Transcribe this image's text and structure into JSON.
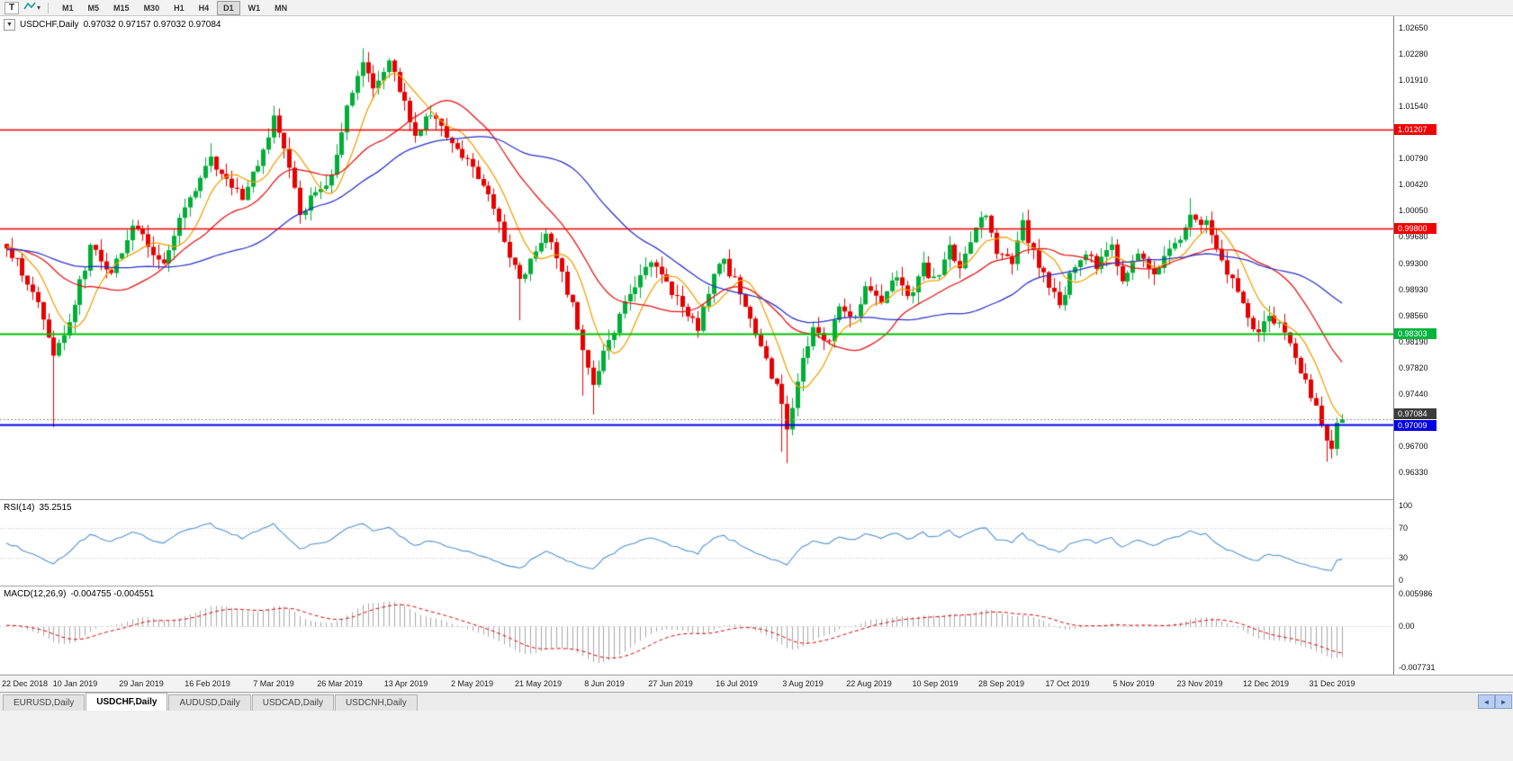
{
  "toolbar": {
    "text_tool_label": "T",
    "timeframes": [
      "M1",
      "M5",
      "M15",
      "M30",
      "H1",
      "H4",
      "D1",
      "W1",
      "MN"
    ],
    "active_timeframe": "D1"
  },
  "icons": {
    "collapse": "▼",
    "dropdown": "▾",
    "scroll_left": "◄",
    "scroll_right": "►"
  },
  "chart_header": {
    "symbol": "USDCHF,Daily",
    "ohlc": "0.97032 0.97157 0.97032 0.97084"
  },
  "price_scale": {
    "ticks": [
      "1.02650",
      "1.02280",
      "1.01910",
      "1.01540",
      "1.00790",
      "1.00420",
      "1.00050",
      "0.99680",
      "0.99300",
      "0.98930",
      "0.98560",
      "0.98190",
      "0.97820",
      "0.97440",
      "0.96700",
      "0.96330"
    ],
    "badges": [
      {
        "text": "1.01207",
        "bg": "#f00000",
        "price": 1.01207,
        "nudge": 0
      },
      {
        "text": "0.99800",
        "bg": "#f00000",
        "price": 0.998,
        "nudge": 0
      },
      {
        "text": "0.98303",
        "bg": "#00b43c",
        "price": 0.98303,
        "nudge": 0
      },
      {
        "text": "0.97084",
        "bg": "#3c3c3c",
        "price": 0.97084,
        "nudge": -6
      },
      {
        "text": "0.97009",
        "bg": "#0000e0",
        "price": 0.97009,
        "nudge": 1
      }
    ]
  },
  "rsi_panel": {
    "name": "RSI(14)",
    "value": "35.2515",
    "scale": [
      "100",
      "70",
      "30",
      "0"
    ]
  },
  "macd_panel": {
    "name": "MACD(12,26,9)",
    "values": "-0.004755 -0.004551",
    "scale": [
      "0.005986",
      "0.00",
      "-0.007731"
    ]
  },
  "tab_bar": {
    "tabs": [
      "EURUSD,Daily",
      "USDCHF,Daily",
      "AUDUSD,Daily",
      "USDCAD,Daily",
      "USDCNH,Daily"
    ],
    "active_index": 1
  },
  "chart_data": {
    "type": "candlestick",
    "symbol": "USDCHF",
    "timeframe": "Daily",
    "quote": {
      "open": 0.97032,
      "high": 0.97157,
      "low": 0.97032,
      "close": 0.97084
    },
    "x_labels": [
      "22 Dec 2018",
      "10 Jan 2019",
      "29 Jan 2019",
      "16 Feb 2019",
      "7 Mar 2019",
      "26 Mar 2019",
      "13 Apr 2019",
      "2 May 2019",
      "21 May 2019",
      "8 Jun 2019",
      "27 Jun 2019",
      "16 Jul 2019",
      "3 Aug 2019",
      "22 Aug 2019",
      "10 Sep 2019",
      "28 Sep 2019",
      "17 Oct 2019",
      "5 Nov 2019",
      "23 Nov 2019",
      "12 Dec 2019",
      "31 Dec 2019"
    ],
    "y_axis": {
      "top": 1.02816,
      "bottom": 0.95946,
      "tick_step": 0.0037
    },
    "hlines": [
      {
        "price": 1.01207,
        "color": "#f00000",
        "width": 1.5,
        "label": "1.01207"
      },
      {
        "price": 0.998,
        "color": "#f00000",
        "width": 1.5,
        "label": "0.99800"
      },
      {
        "price": 0.98303,
        "color": "#00c000",
        "width": 2,
        "label": "0.98303"
      },
      {
        "price": 0.97009,
        "color": "#0000e8",
        "width": 2,
        "label": "0.97009"
      }
    ],
    "style": {
      "up_color": "#00ae38",
      "down_color": "#e60000",
      "current_line_color": "#909090",
      "rsi_color": "#4f93d2",
      "macd_hist_color": "#a8a8a8",
      "macd_signal_color": "#e00000",
      "grid_dot_color": "#c0c0c0"
    },
    "moving_averages": [
      {
        "period": 8,
        "color": "#f0a000"
      },
      {
        "period": 21,
        "color": "#e81010"
      },
      {
        "period": 45,
        "color": "#2830cc"
      }
    ],
    "rsi": {
      "period": 14,
      "current": 35.2515,
      "levels": [
        70,
        30
      ],
      "range": [
        0,
        100
      ]
    },
    "macd": {
      "fast": 12,
      "slow": 26,
      "signal": 9,
      "current_main": -0.004755,
      "current_signal": -0.004551,
      "range": [
        0.005986,
        -0.007731
      ]
    },
    "candles": {
      "count": 256,
      "waypoints": [
        [
          0,
          0.995
        ],
        [
          2,
          0.9935
        ],
        [
          6,
          0.9872
        ],
        [
          9,
          0.9795
        ],
        [
          12,
          0.985
        ],
        [
          16,
          0.9952
        ],
        [
          20,
          0.9918
        ],
        [
          24,
          0.9985
        ],
        [
          27,
          0.9958
        ],
        [
          30,
          0.9925
        ],
        [
          34,
          1.001
        ],
        [
          39,
          1.0078
        ],
        [
          42,
          1.0045
        ],
        [
          45,
          1.0025
        ],
        [
          48,
          1.007
        ],
        [
          51,
          1.0135
        ],
        [
          54,
          1.0068
        ],
        [
          56,
          1.0
        ],
        [
          59,
          1.003
        ],
        [
          62,
          1.0052
        ],
        [
          65,
          1.015
        ],
        [
          68,
          1.0215
        ],
        [
          70,
          1.018
        ],
        [
          73,
          1.0215
        ],
        [
          76,
          1.016
        ],
        [
          78,
          1.011
        ],
        [
          81,
          1.0145
        ],
        [
          84,
          1.011
        ],
        [
          87,
          1.0085
        ],
        [
          90,
          1.0055
        ],
        [
          93,
          1.001
        ],
        [
          96,
          0.9945
        ],
        [
          98,
          0.9905
        ],
        [
          101,
          0.995
        ],
        [
          103,
          0.9975
        ],
        [
          105,
          0.9935
        ],
        [
          108,
          0.987
        ],
        [
          110,
          0.98
        ],
        [
          112,
          0.976
        ],
        [
          114,
          0.98
        ],
        [
          117,
          0.9855
        ],
        [
          120,
          0.99
        ],
        [
          123,
          0.9935
        ],
        [
          126,
          0.9905
        ],
        [
          129,
          0.9865
        ],
        [
          132,
          0.984
        ],
        [
          135,
          0.9915
        ],
        [
          137,
          0.993
        ],
        [
          140,
          0.989
        ],
        [
          143,
          0.983
        ],
        [
          146,
          0.977
        ],
        [
          148,
          0.9735
        ],
        [
          149,
          0.97
        ],
        [
          152,
          0.979
        ],
        [
          154,
          0.9835
        ],
        [
          157,
          0.982
        ],
        [
          159,
          0.987
        ],
        [
          162,
          0.9855
        ],
        [
          164,
          0.9895
        ],
        [
          167,
          0.988
        ],
        [
          170,
          0.9915
        ],
        [
          172,
          0.988
        ],
        [
          175,
          0.9925
        ],
        [
          177,
          0.9905
        ],
        [
          180,
          0.995
        ],
        [
          182,
          0.9925
        ],
        [
          185,
          0.9985
        ],
        [
          187,
          1.0
        ],
        [
          189,
          0.995
        ],
        [
          192,
          0.993
        ],
        [
          194,
          0.9985
        ],
        [
          196,
          0.9945
        ],
        [
          199,
          0.9895
        ],
        [
          201,
          0.987
        ],
        [
          203,
          0.991
        ],
        [
          206,
          0.9945
        ],
        [
          208,
          0.9925
        ],
        [
          211,
          0.9955
        ],
        [
          213,
          0.9905
        ],
        [
          216,
          0.9945
        ],
        [
          219,
          0.992
        ],
        [
          221,
          0.994
        ],
        [
          224,
          0.997
        ],
        [
          226,
          0.9995
        ],
        [
          229,
          0.9985
        ],
        [
          231,
          0.995
        ],
        [
          234,
          0.9905
        ],
        [
          237,
          0.9855
        ],
        [
          239,
          0.983
        ],
        [
          241,
          0.9855
        ],
        [
          243,
          0.984
        ],
        [
          246,
          0.9795
        ],
        [
          248,
          0.9762
        ],
        [
          250,
          0.9725
        ],
        [
          252,
          0.9675
        ],
        [
          253,
          0.9668
        ],
        [
          254,
          0.9702
        ],
        [
          255,
          0.9708
        ]
      ],
      "wick_overrides": [
        {
          "i": 9,
          "low": 0.9697
        },
        {
          "i": 39,
          "high": 1.0101
        },
        {
          "i": 51,
          "high": 1.0146
        },
        {
          "i": 68,
          "high": 1.0236
        },
        {
          "i": 98,
          "low": 0.9849
        },
        {
          "i": 110,
          "low": 0.9742
        },
        {
          "i": 112,
          "low": 0.9715
        },
        {
          "i": 148,
          "low": 0.9662
        },
        {
          "i": 149,
          "low": 0.9646
        },
        {
          "i": 226,
          "high": 1.0023
        },
        {
          "i": 252,
          "low": 0.9648
        }
      ]
    }
  }
}
